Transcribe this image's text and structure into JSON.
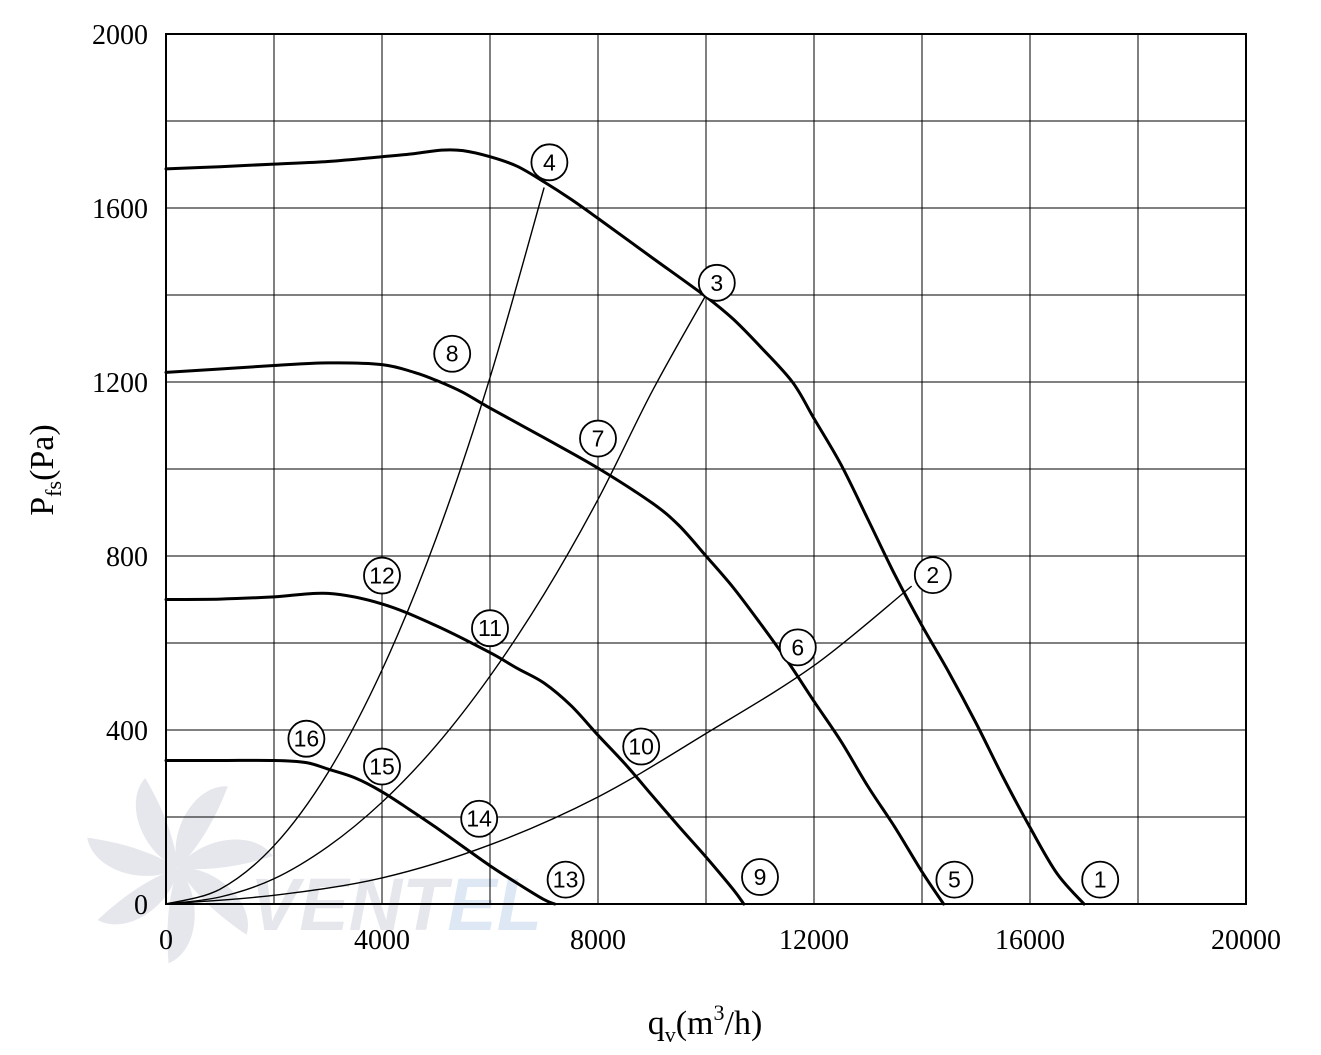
{
  "colors": {
    "background": "#ffffff",
    "grid": "#000000",
    "curve": "#000000",
    "watermark": "#e3e5ea",
    "watermark_accent": "#dbe6f3"
  },
  "chart_data": {
    "type": "line",
    "title": "",
    "xlabel": {
      "base": "q",
      "sub": "v",
      "unit_pre": "(m",
      "sup": "3",
      "unit_post": "/h)"
    },
    "ylabel": {
      "base": "P",
      "sub": "fs",
      "unit": "(Pa)"
    },
    "xlim": [
      0,
      20000
    ],
    "ylim": [
      0,
      2000
    ],
    "x_ticks": [
      0,
      4000,
      8000,
      12000,
      16000,
      20000
    ],
    "y_ticks": [
      0,
      400,
      800,
      1200,
      1600,
      2000
    ],
    "x_tick_labels": [
      "0",
      "4000",
      "8000",
      "12000",
      "16000",
      "20000"
    ],
    "y_tick_labels": [
      "0",
      "400",
      "800",
      "1200",
      "1600",
      "2000"
    ],
    "grid": {
      "x_step": 2000,
      "y_step": 200
    },
    "watermark": {
      "text_dark": "VENT",
      "text_accent": "EL"
    },
    "series": [
      {
        "kind": "fan-curve",
        "label_start": "4",
        "label_end": "1",
        "points": [
          [
            0,
            1690
          ],
          [
            1000,
            1695
          ],
          [
            2000,
            1701
          ],
          [
            3000,
            1707
          ],
          [
            4000,
            1718
          ],
          [
            4600,
            1725
          ],
          [
            5100,
            1733
          ],
          [
            5500,
            1732
          ],
          [
            6000,
            1718
          ],
          [
            6500,
            1696
          ],
          [
            7000,
            1660
          ],
          [
            7500,
            1620
          ],
          [
            8000,
            1576
          ],
          [
            9000,
            1486
          ],
          [
            10000,
            1396
          ],
          [
            10500,
            1345
          ],
          [
            11000,
            1282
          ],
          [
            11600,
            1200
          ],
          [
            12000,
            1116
          ],
          [
            12500,
            1010
          ],
          [
            13000,
            884
          ],
          [
            13500,
            756
          ],
          [
            14000,
            640
          ],
          [
            14500,
            532
          ],
          [
            15000,
            416
          ],
          [
            15500,
            292
          ],
          [
            16000,
            176
          ],
          [
            16500,
            70
          ],
          [
            17000,
            0
          ]
        ]
      },
      {
        "kind": "fan-curve",
        "label_start": "8",
        "label_end": "5",
        "points": [
          [
            0,
            1222
          ],
          [
            1000,
            1230
          ],
          [
            2000,
            1238
          ],
          [
            3000,
            1244
          ],
          [
            4000,
            1240
          ],
          [
            4600,
            1222
          ],
          [
            5000,
            1204
          ],
          [
            5500,
            1176
          ],
          [
            6000,
            1140
          ],
          [
            7000,
            1072
          ],
          [
            8000,
            1002
          ],
          [
            9000,
            922
          ],
          [
            9500,
            870
          ],
          [
            10000,
            800
          ],
          [
            10500,
            728
          ],
          [
            11000,
            646
          ],
          [
            11500,
            560
          ],
          [
            12000,
            466
          ],
          [
            12500,
            374
          ],
          [
            13000,
            270
          ],
          [
            13500,
            176
          ],
          [
            14000,
            74
          ],
          [
            14400,
            0
          ]
        ]
      },
      {
        "kind": "fan-curve",
        "label_start": "12",
        "label_end": "9",
        "points": [
          [
            0,
            700
          ],
          [
            1000,
            701
          ],
          [
            2000,
            706
          ],
          [
            3000,
            714
          ],
          [
            4000,
            690
          ],
          [
            5000,
            640
          ],
          [
            6000,
            578
          ],
          [
            6500,
            542
          ],
          [
            7000,
            508
          ],
          [
            7500,
            456
          ],
          [
            8000,
            388
          ],
          [
            8500,
            322
          ],
          [
            9000,
            250
          ],
          [
            9500,
            178
          ],
          [
            10000,
            108
          ],
          [
            10500,
            34
          ],
          [
            10700,
            0
          ]
        ]
      },
      {
        "kind": "fan-curve",
        "label_start": "16",
        "label_end": "13",
        "points": [
          [
            0,
            330
          ],
          [
            1000,
            330
          ],
          [
            2000,
            330
          ],
          [
            2600,
            325
          ],
          [
            3000,
            310
          ],
          [
            3500,
            290
          ],
          [
            4000,
            258
          ],
          [
            4500,
            218
          ],
          [
            5000,
            176
          ],
          [
            5500,
            132
          ],
          [
            6000,
            88
          ],
          [
            6500,
            48
          ],
          [
            7000,
            10
          ],
          [
            7200,
            0
          ]
        ]
      },
      {
        "kind": "system-curve",
        "label_outer": "4",
        "label_mid": [
          "8",
          "12",
          "16"
        ],
        "points": [
          [
            0,
            0
          ],
          [
            1000,
            34
          ],
          [
            2000,
            134
          ],
          [
            3000,
            302
          ],
          [
            4000,
            538
          ],
          [
            5000,
            840
          ],
          [
            6000,
            1210
          ],
          [
            7000,
            1646
          ]
        ]
      },
      {
        "kind": "system-curve",
        "label_outer": "3",
        "label_mid": [
          "7",
          "11",
          "15"
        ],
        "points": [
          [
            0,
            0
          ],
          [
            1000,
            16
          ],
          [
            2000,
            58
          ],
          [
            3000,
            132
          ],
          [
            4000,
            234
          ],
          [
            5000,
            364
          ],
          [
            6000,
            524
          ],
          [
            7000,
            712
          ],
          [
            8000,
            930
          ],
          [
            9000,
            1178
          ],
          [
            10000,
            1400
          ]
        ]
      },
      {
        "kind": "system-curve",
        "label_outer": "2",
        "label_mid": [
          "6",
          "10",
          "14"
        ],
        "points": [
          [
            0,
            0
          ],
          [
            2000,
            20
          ],
          [
            4000,
            60
          ],
          [
            6000,
            136
          ],
          [
            8000,
            246
          ],
          [
            10000,
            392
          ],
          [
            12000,
            548
          ],
          [
            13800,
            730
          ]
        ]
      }
    ],
    "callouts": [
      {
        "label": "1",
        "x": 17300,
        "y": 56
      },
      {
        "label": "2",
        "x": 14200,
        "y": 756
      },
      {
        "label": "3",
        "x": 10200,
        "y": 1428
      },
      {
        "label": "4",
        "x": 7100,
        "y": 1705
      },
      {
        "label": "5",
        "x": 14600,
        "y": 56
      },
      {
        "label": "6",
        "x": 11700,
        "y": 590
      },
      {
        "label": "7",
        "x": 8000,
        "y": 1070
      },
      {
        "label": "8",
        "x": 5300,
        "y": 1265
      },
      {
        "label": "9",
        "x": 11000,
        "y": 62
      },
      {
        "label": "10",
        "x": 8800,
        "y": 362
      },
      {
        "label": "11",
        "x": 6000,
        "y": 634
      },
      {
        "label": "12",
        "x": 4000,
        "y": 755
      },
      {
        "label": "13",
        "x": 7400,
        "y": 56
      },
      {
        "label": "14",
        "x": 5800,
        "y": 196
      },
      {
        "label": "15",
        "x": 4000,
        "y": 316
      },
      {
        "label": "16",
        "x": 2600,
        "y": 380
      }
    ]
  }
}
